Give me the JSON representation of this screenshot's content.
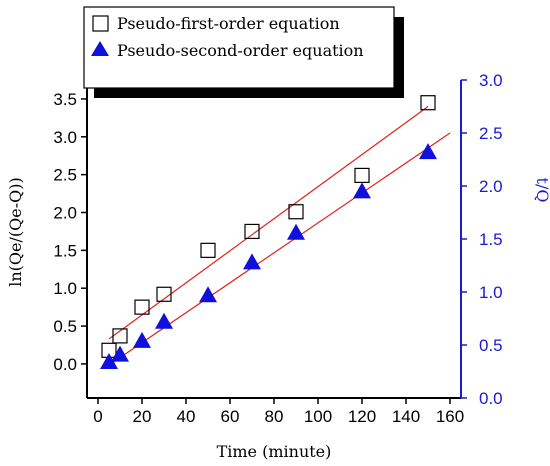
{
  "chart_data": {
    "type": "scatter",
    "x": [
      5,
      10,
      20,
      30,
      50,
      70,
      90,
      120,
      150
    ],
    "xlabel": "Time (minute)",
    "xlim": [
      -5,
      165
    ],
    "xticks": [
      0,
      20,
      40,
      60,
      80,
      100,
      120,
      140,
      160
    ],
    "ylabel_left": "ln(Qe/(Qe-Q))",
    "ylim_left": [
      -0.45,
      3.75
    ],
    "yticks_left": [
      0.0,
      0.5,
      1.0,
      1.5,
      2.0,
      2.5,
      3.0,
      3.5
    ],
    "ylabel_right": "t/Q",
    "ylim_right": [
      0.0,
      3.0
    ],
    "yticks_right": [
      0.0,
      0.5,
      1.0,
      1.5,
      2.0,
      2.5,
      3.0
    ],
    "legend_position": "top-left",
    "grid": false,
    "series": [
      {
        "name": "Pseudo-first-order equation",
        "axis": "left",
        "marker": "open-square",
        "color": "#000000",
        "values": [
          0.18,
          0.37,
          0.75,
          0.92,
          1.5,
          1.75,
          2.01,
          2.49,
          3.45
        ],
        "fit_line": {
          "x": [
            5,
            150
          ],
          "y": [
            0.33,
            3.4
          ],
          "color": "#e0201e"
        }
      },
      {
        "name": "Pseudo-second-order equation",
        "axis": "right",
        "marker": "filled-triangle",
        "color": "#1010dd",
        "values": [
          0.33,
          0.4,
          0.53,
          0.71,
          0.96,
          1.27,
          1.55,
          1.94,
          2.31
        ],
        "fit_line": {
          "x": [
            5,
            160
          ],
          "y": [
            0.31,
            2.5
          ],
          "color": "#e0201e"
        }
      }
    ]
  }
}
